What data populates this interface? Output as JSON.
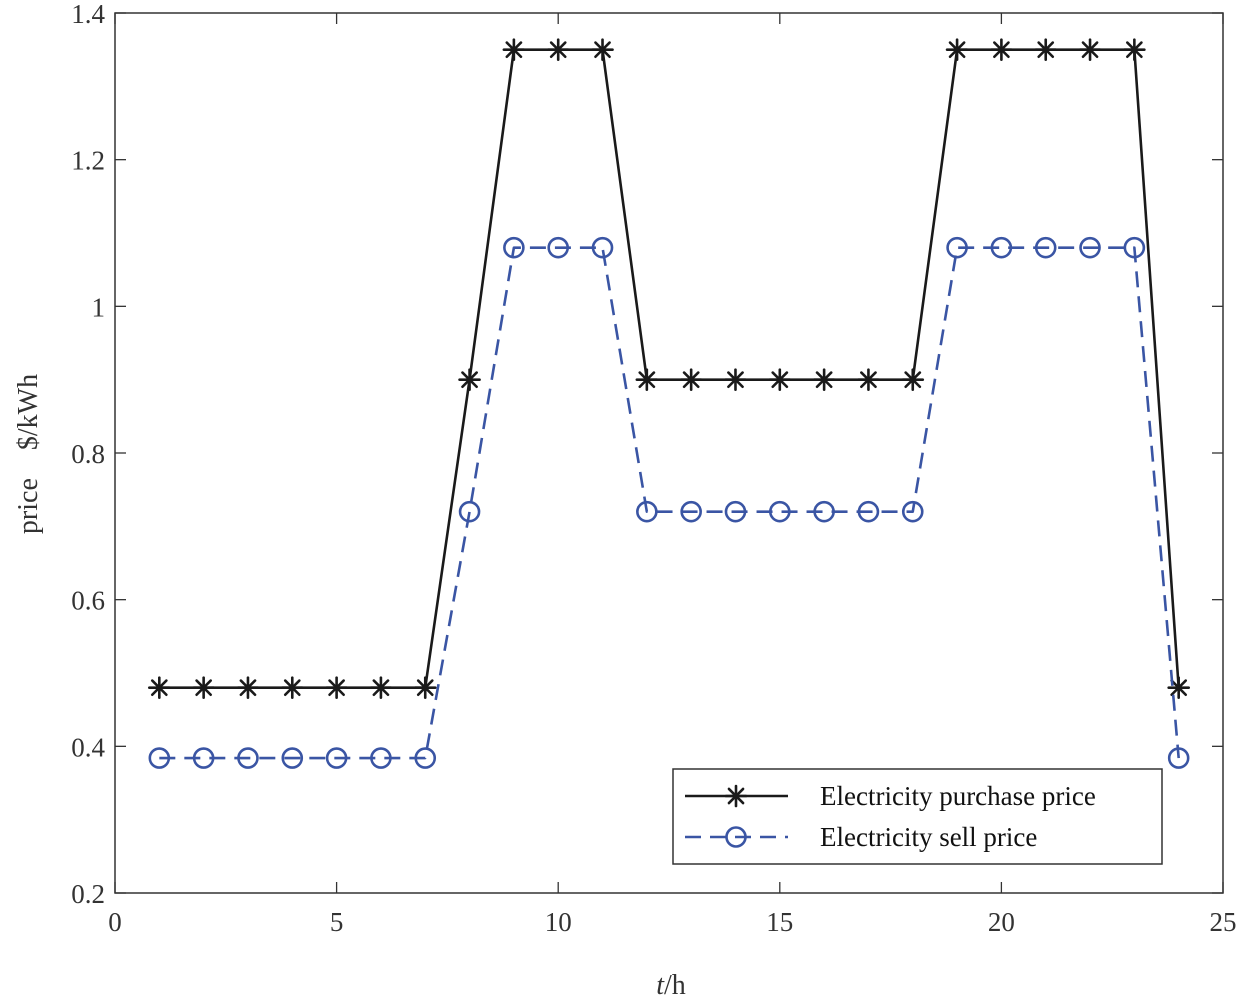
{
  "chart_data": {
    "type": "line",
    "xlabel_italic": "t",
    "xlabel_rest": "/h",
    "ylabel": "price　$/kWh",
    "xlim": [
      0,
      25
    ],
    "ylim": [
      0.2,
      1.4
    ],
    "xticks": [
      0,
      5,
      10,
      15,
      20,
      25
    ],
    "xtick_labels": [
      "0",
      "5",
      "10",
      "15",
      "20",
      "25"
    ],
    "yticks": [
      0.2,
      0.4,
      0.6,
      0.8,
      1.0,
      1.2,
      1.4
    ],
    "ytick_labels": [
      "0.2",
      "0.4",
      "0.6",
      "0.8",
      "1",
      "1.2",
      "1.4"
    ],
    "grid": false,
    "legend_position": "bottom-right",
    "x": [
      1,
      2,
      3,
      4,
      5,
      6,
      7,
      8,
      9,
      10,
      11,
      12,
      13,
      14,
      15,
      16,
      17,
      18,
      19,
      20,
      21,
      22,
      23,
      24
    ],
    "series": [
      {
        "name": "Electricity purchase price",
        "color": "#1a1a1a",
        "line_style": "solid",
        "marker": "asterisk",
        "values": [
          0.48,
          0.48,
          0.48,
          0.48,
          0.48,
          0.48,
          0.48,
          0.9,
          1.35,
          1.35,
          1.35,
          0.9,
          0.9,
          0.9,
          0.9,
          0.9,
          0.9,
          0.9,
          1.35,
          1.35,
          1.35,
          1.35,
          1.35,
          0.48
        ]
      },
      {
        "name": "Electricity sell price",
        "color": "#3a55a4",
        "line_style": "dashed",
        "marker": "circle",
        "values": [
          0.384,
          0.384,
          0.384,
          0.384,
          0.384,
          0.384,
          0.384,
          0.72,
          1.08,
          1.08,
          1.08,
          0.72,
          0.72,
          0.72,
          0.72,
          0.72,
          0.72,
          0.72,
          1.08,
          1.08,
          1.08,
          1.08,
          1.08,
          0.384
        ]
      }
    ]
  }
}
